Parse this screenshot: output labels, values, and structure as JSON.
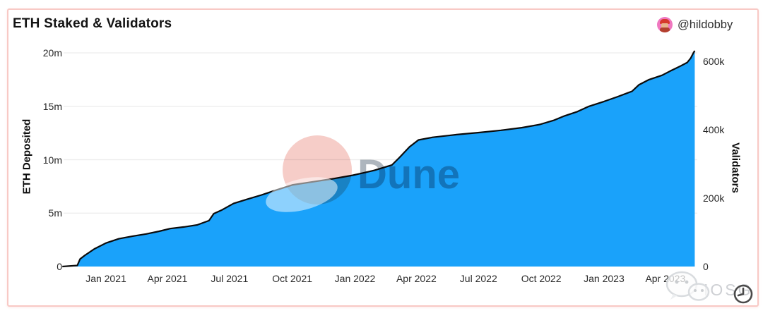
{
  "header": {
    "title": "ETH Staked & Validators",
    "author_handle": "@hildobby"
  },
  "axes": {
    "left_title": "ETH Deposited",
    "right_title": "Validators",
    "left_tick_labels": [
      "0",
      "5m",
      "10m",
      "15m",
      "20m"
    ],
    "left_tick_values_m": [
      0,
      5,
      10,
      15,
      20
    ],
    "right_tick_labels": [
      "0",
      "200k",
      "400k",
      "600k"
    ],
    "right_tick_values_k": [
      0,
      200,
      400,
      600
    ],
    "x_tick_labels": [
      "Jan 2021",
      "Apr 2021",
      "Jul 2021",
      "Oct 2021",
      "Jan 2022",
      "Apr 2022",
      "Jul 2022",
      "Oct 2022",
      "Jan 2023",
      "Apr 2023"
    ],
    "x_tick_dates": [
      "2021-01-01",
      "2021-04-01",
      "2021-07-01",
      "2021-10-01",
      "2022-01-01",
      "2022-04-01",
      "2022-07-01",
      "2022-10-01",
      "2023-01-01",
      "2023-04-01"
    ]
  },
  "watermarks": {
    "dune_label": "Dune",
    "iosg_label": "IOSG"
  },
  "colors": {
    "area_fill": "#1AA2FA",
    "line": "#0B0B0B",
    "grid": "#ECECEC",
    "card_border": "#F8C9C5",
    "dune_circle": "#F6CDC8",
    "dune_text": "#AEB6BE"
  },
  "chart_data": {
    "type": "area",
    "title": "ETH Staked & Validators",
    "xlabel": "",
    "y_left_label": "ETH Deposited",
    "y_right_label": "Validators",
    "y_left_range_millions": [
      0,
      20
    ],
    "y_right_range_thousands": [
      0,
      625
    ],
    "eth_per_validator": 32,
    "x_range_dates": [
      "2020-10-29",
      "2023-05-14"
    ],
    "grid": "horizontal-only",
    "legend": "none",
    "dates": [
      "2020-10-29",
      "2020-11-20",
      "2020-11-24",
      "2020-12-01",
      "2020-12-15",
      "2021-01-01",
      "2021-01-20",
      "2021-02-10",
      "2021-03-01",
      "2021-03-20",
      "2021-04-05",
      "2021-04-25",
      "2021-05-15",
      "2021-06-01",
      "2021-06-08",
      "2021-06-20",
      "2021-07-07",
      "2021-07-27",
      "2021-08-17",
      "2021-09-07",
      "2021-10-02",
      "2021-10-28",
      "2021-11-28",
      "2021-12-29",
      "2022-01-29",
      "2022-02-24",
      "2022-03-07",
      "2022-03-22",
      "2022-04-04",
      "2022-04-25",
      "2022-05-30",
      "2022-07-03",
      "2022-08-03",
      "2022-09-03",
      "2022-09-29",
      "2022-10-20",
      "2022-11-04",
      "2022-11-23",
      "2022-12-10",
      "2023-01-01",
      "2023-01-21",
      "2023-02-11",
      "2023-02-21",
      "2023-03-08",
      "2023-03-27",
      "2023-04-08",
      "2023-04-16",
      "2023-04-24",
      "2023-05-03",
      "2023-05-08",
      "2023-05-12",
      "2023-05-14"
    ],
    "series": [
      {
        "name": "ETH Deposited (millions)",
        "axis": "left",
        "values": [
          0,
          0.1,
          0.7,
          1.05,
          1.65,
          2.2,
          2.6,
          2.85,
          3.05,
          3.3,
          3.55,
          3.7,
          3.9,
          4.3,
          4.95,
          5.3,
          5.9,
          6.3,
          6.7,
          7.15,
          7.65,
          7.9,
          8.2,
          8.55,
          9.0,
          9.5,
          10.2,
          11.2,
          11.85,
          12.1,
          12.35,
          12.55,
          12.75,
          13.0,
          13.3,
          13.7,
          14.1,
          14.5,
          15.0,
          15.45,
          15.9,
          16.4,
          17.0,
          17.5,
          17.9,
          18.3,
          18.55,
          18.8,
          19.1,
          19.5,
          20.0,
          20.2
        ]
      },
      {
        "name": "Validators (thousands)",
        "axis": "right",
        "values": [
          0,
          3,
          22,
          33,
          52,
          69,
          81,
          89,
          95,
          103,
          111,
          116,
          122,
          134,
          155,
          166,
          184,
          197,
          209,
          223,
          239,
          247,
          256,
          267,
          281,
          297,
          319,
          350,
          370,
          378,
          386,
          392,
          398,
          406,
          416,
          428,
          441,
          453,
          469,
          483,
          497,
          513,
          531,
          547,
          559,
          572,
          580,
          588,
          597,
          609,
          625,
          631
        ]
      }
    ]
  }
}
